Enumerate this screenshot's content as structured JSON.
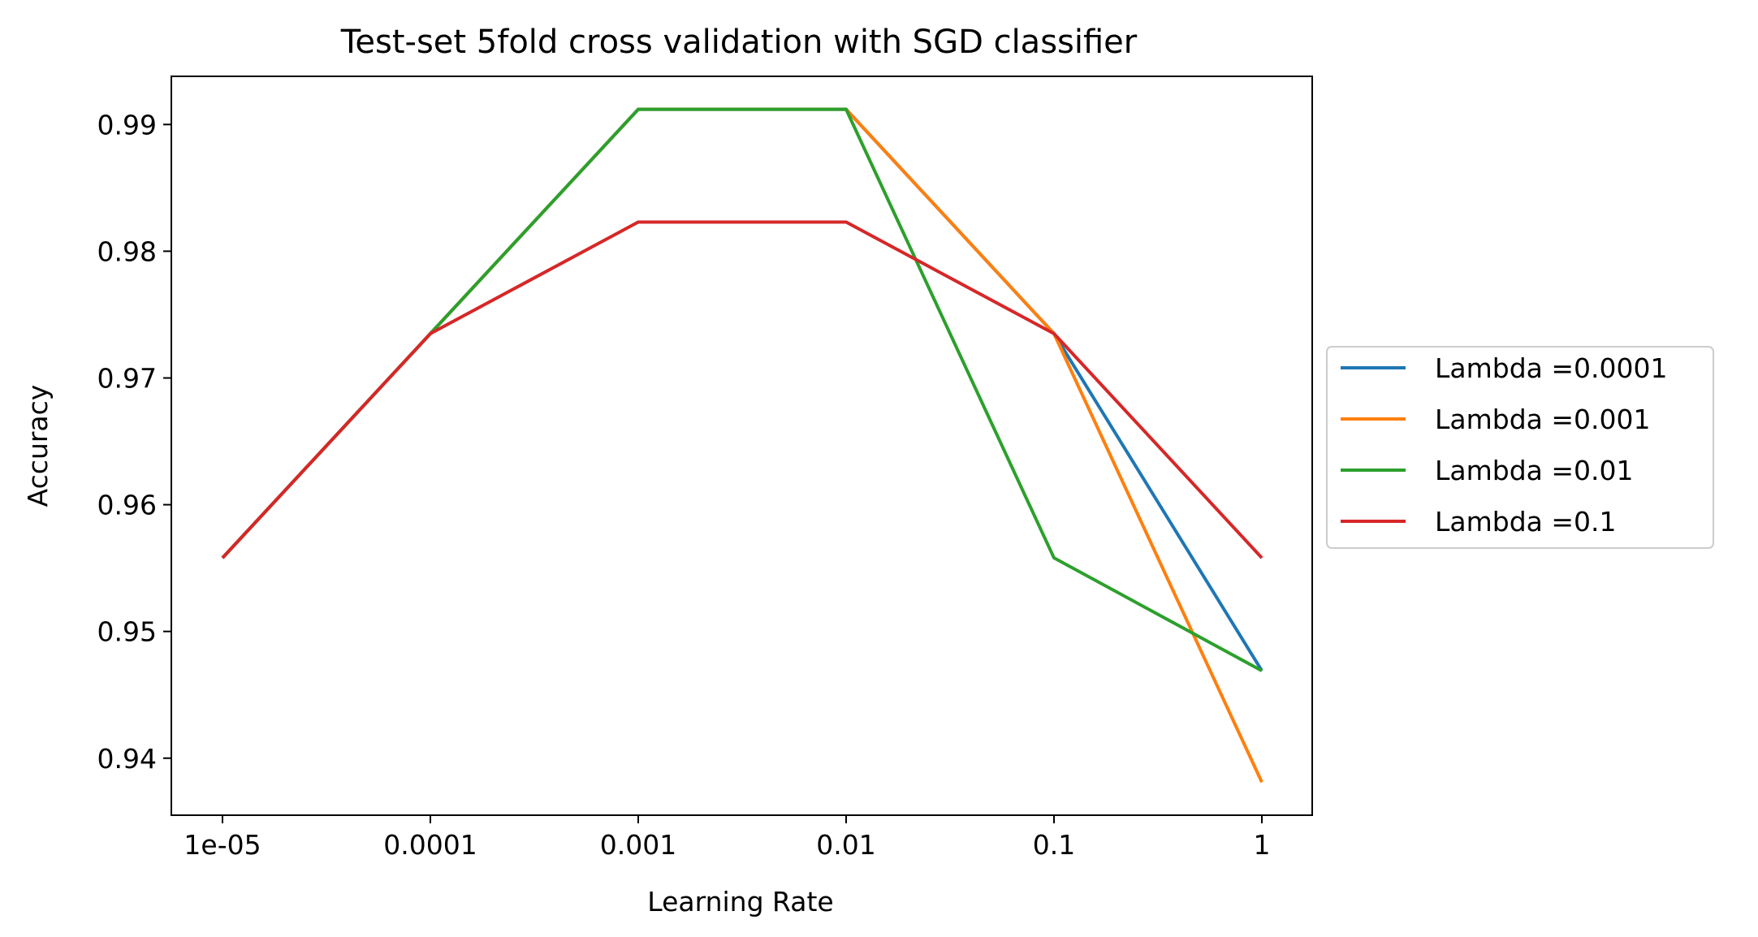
{
  "chart_data": {
    "type": "line",
    "title": "Test-set 5fold cross validation with SGD classifier",
    "xlabel": "Learning Rate",
    "ylabel": "Accuracy",
    "x": [
      "1e-05",
      "0.0001",
      "0.001",
      "0.01",
      "0.1",
      "1"
    ],
    "yticks": [
      "0.94",
      "0.95",
      "0.96",
      "0.97",
      "0.98",
      "0.99"
    ],
    "ylim": [
      0.9355,
      0.9938
    ],
    "grid": false,
    "legend_position": "outside-right",
    "series": [
      {
        "name": "Lambda =0.0001",
        "color": "#1f77b4",
        "values": [
          0.9558,
          0.9735,
          0.9912,
          0.9912,
          0.9735,
          0.9469
        ]
      },
      {
        "name": "Lambda =0.001",
        "color": "#ff7f0e",
        "values": [
          0.9558,
          0.9735,
          0.9912,
          0.9912,
          0.9735,
          0.9381
        ]
      },
      {
        "name": "Lambda =0.01",
        "color": "#2ca02c",
        "values": [
          0.9558,
          0.9735,
          0.9912,
          0.9912,
          0.9558,
          0.9469
        ]
      },
      {
        "name": "Lambda =0.1",
        "color": "#d62728",
        "values": [
          0.9558,
          0.9735,
          0.9823,
          0.9823,
          0.9735,
          0.9558
        ]
      }
    ]
  }
}
